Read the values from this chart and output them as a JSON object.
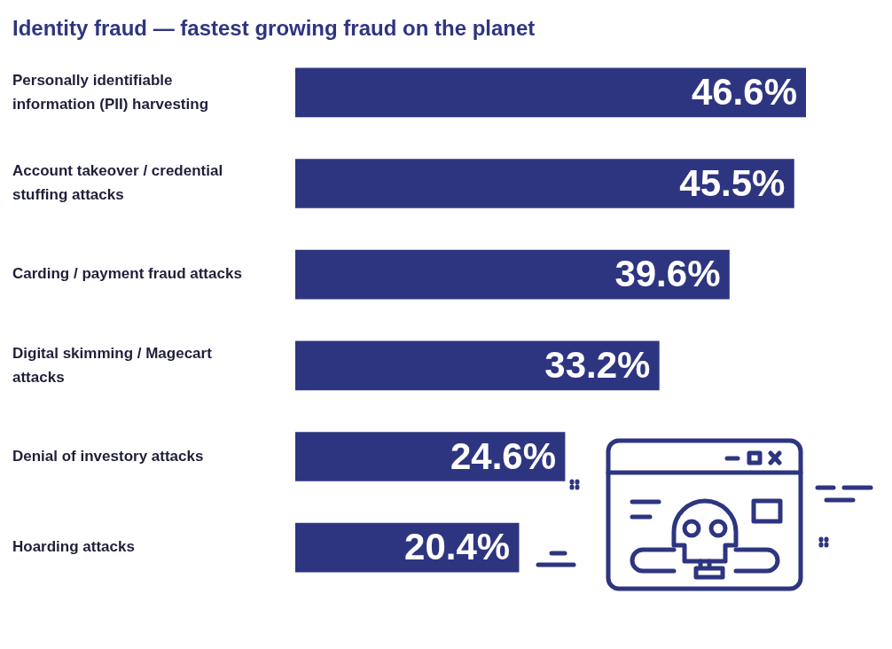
{
  "chart_data": {
    "type": "bar",
    "orientation": "horizontal",
    "title": "Identity fraud — fastest growing fraud on the planet",
    "categories": [
      "Personally identifiable information (PII) harvesting",
      "Account takeover / credential stuffing attacks",
      "Carding / payment fraud attacks",
      "Digital skimming / Magecart attacks",
      "Denial of investory attacks",
      "Hoarding attacks"
    ],
    "values": [
      46.6,
      45.5,
      39.6,
      33.2,
      24.6,
      20.4
    ],
    "value_labels": [
      "46.6%",
      "45.5%",
      "39.6%",
      "33.2%",
      "24.6%",
      "20.4%"
    ],
    "color": "#2e3580",
    "tick_labels": "y"
  }
}
